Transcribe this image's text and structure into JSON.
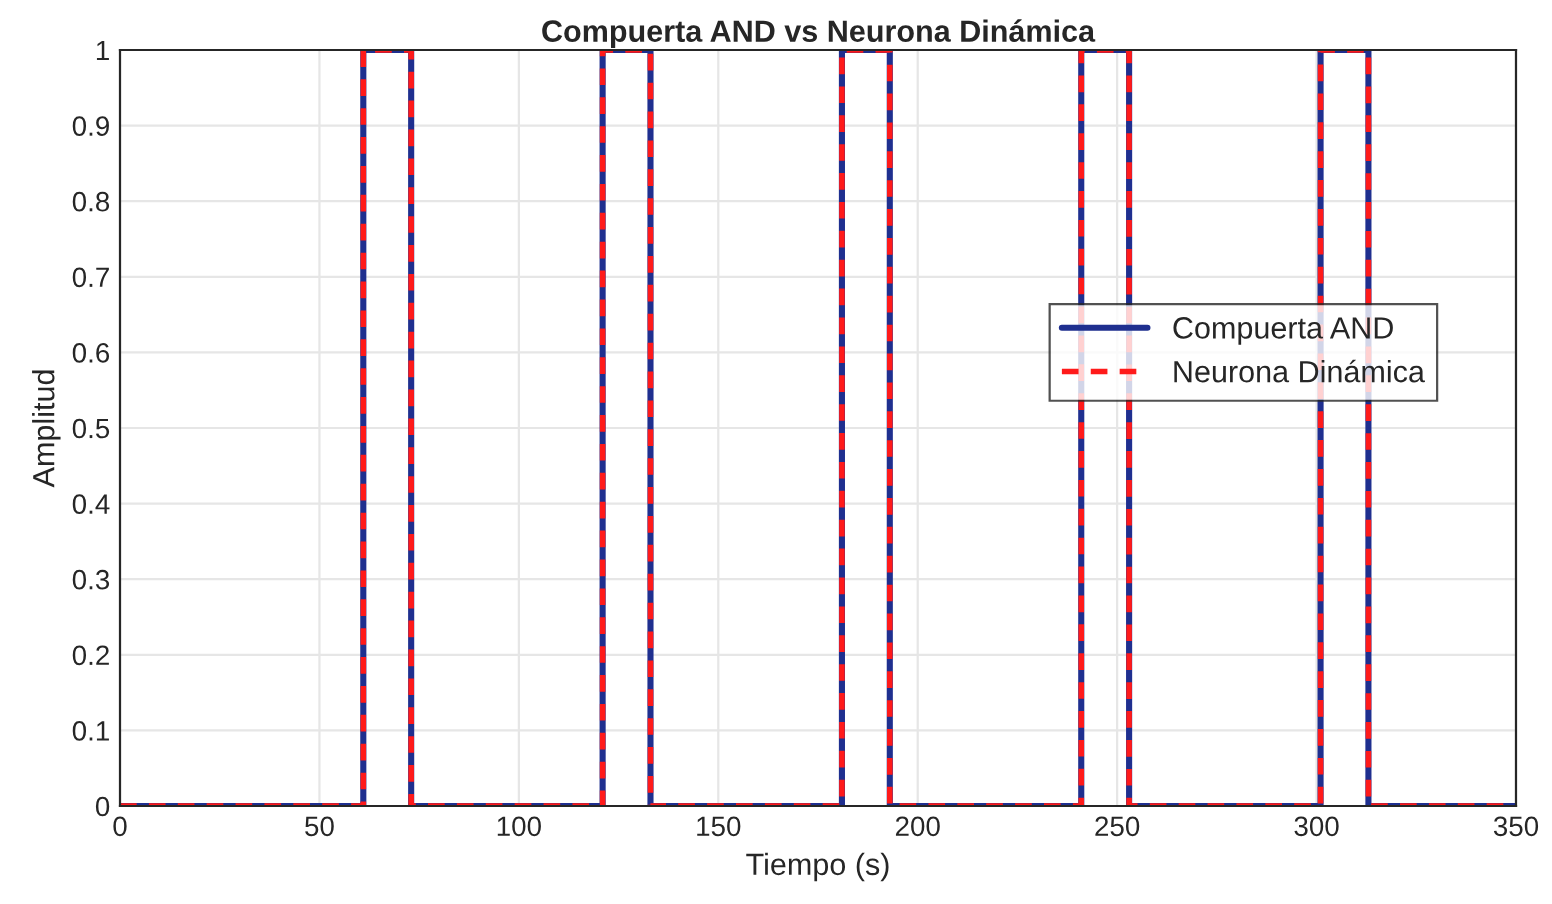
{
  "chart_data": {
    "type": "line",
    "title": "Compuerta AND vs Neurona Dinámica",
    "xlabel": "Tiempo (s)",
    "ylabel": "Amplitud",
    "x": [
      0,
      61,
      61,
      73,
      73,
      121,
      121,
      133,
      133,
      181,
      181,
      193,
      193,
      241,
      241,
      253,
      253,
      301,
      301,
      313,
      313,
      350
    ],
    "series": [
      {
        "name": "Compuerta AND",
        "color": "#1f2f8f",
        "line_style": "solid",
        "values": [
          0,
          0,
          1,
          1,
          0,
          0,
          1,
          1,
          0,
          0,
          1,
          1,
          0,
          0,
          1,
          1,
          0,
          0,
          1,
          1,
          0,
          0
        ]
      },
      {
        "name": "Neurona Dinámica",
        "color": "#ff1a1a",
        "line_style": "dashed",
        "values": [
          0,
          0,
          1,
          1,
          0,
          0,
          1,
          1,
          0,
          0,
          1,
          1,
          0,
          0,
          1,
          1,
          0,
          0,
          1,
          1,
          0,
          0
        ]
      }
    ],
    "xlim": [
      0,
      350
    ],
    "xticks": [
      0,
      50,
      100,
      150,
      200,
      250,
      300,
      350
    ],
    "ylim": [
      0,
      1
    ],
    "yticks": [
      0,
      0.1,
      0.2,
      0.3,
      0.4,
      0.5,
      0.6,
      0.7,
      0.8,
      0.9,
      1
    ],
    "grid": true,
    "legend": "right"
  }
}
